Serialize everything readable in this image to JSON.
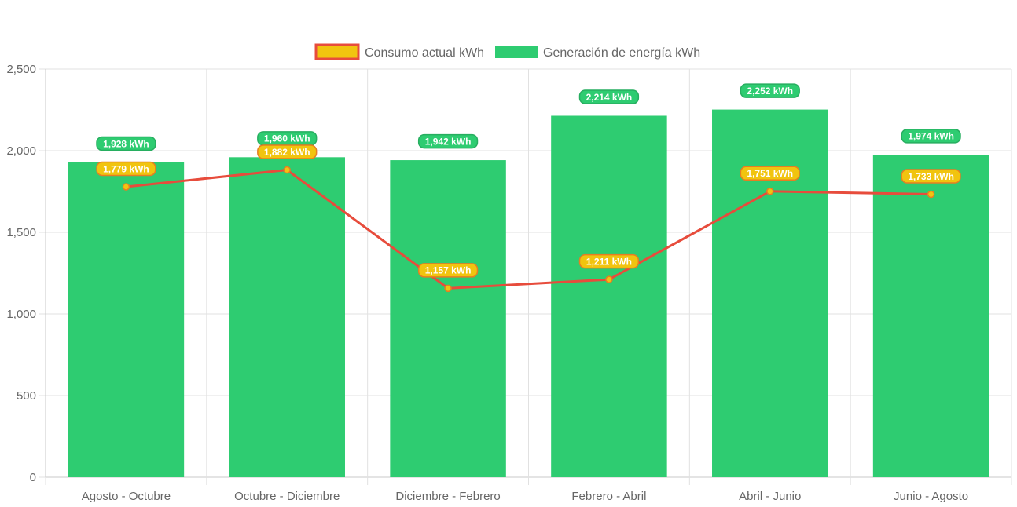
{
  "colors": {
    "bar_fill": "#2ecc71",
    "line_stroke": "#e74c3c",
    "point_fill": "#f1c40f",
    "label_consumo_bg": "#f1c40f",
    "label_consumo_border": "#e67e22",
    "label_generacion_bg": "#2ecc71",
    "label_generacion_border": "#27ae60",
    "grid": "#e1e1e1",
    "axis": "#c8c8c8",
    "text": "#666666"
  },
  "chart_data": {
    "type": "bar",
    "title": "",
    "xlabel": "",
    "ylabel": "",
    "ylim": [
      0,
      2500
    ],
    "yticks": [
      0,
      500,
      1000,
      1500,
      2000,
      2500
    ],
    "ytick_labels": [
      "0",
      "500",
      "1,000",
      "1,500",
      "2,000",
      "2,500"
    ],
    "grid": true,
    "legend_position": "top-center",
    "categories": [
      "Agosto - Octubre",
      "Octubre - Diciembre",
      "Diciembre - Febrero",
      "Febrero - Abril",
      "Abril - Junio",
      "Junio - Agosto"
    ],
    "series": [
      {
        "name": "Consumo actual kWh",
        "type": "line",
        "values": [
          1779,
          1882,
          1157,
          1211,
          1751,
          1733
        ],
        "labels": [
          "1,779 kWh",
          "1,882 kWh",
          "1,157 kWh",
          "1,211 kWh",
          "1,751 kWh",
          "1,733 kWh"
        ]
      },
      {
        "name": "Generación de energía kWh",
        "type": "bar",
        "values": [
          1928,
          1960,
          1942,
          2214,
          2252,
          1974
        ],
        "labels": [
          "1,928 kWh",
          "1,960 kWh",
          "1,942 kWh",
          "2,214 kWh",
          "2,252 kWh",
          "1,974 kWh"
        ]
      }
    ]
  }
}
